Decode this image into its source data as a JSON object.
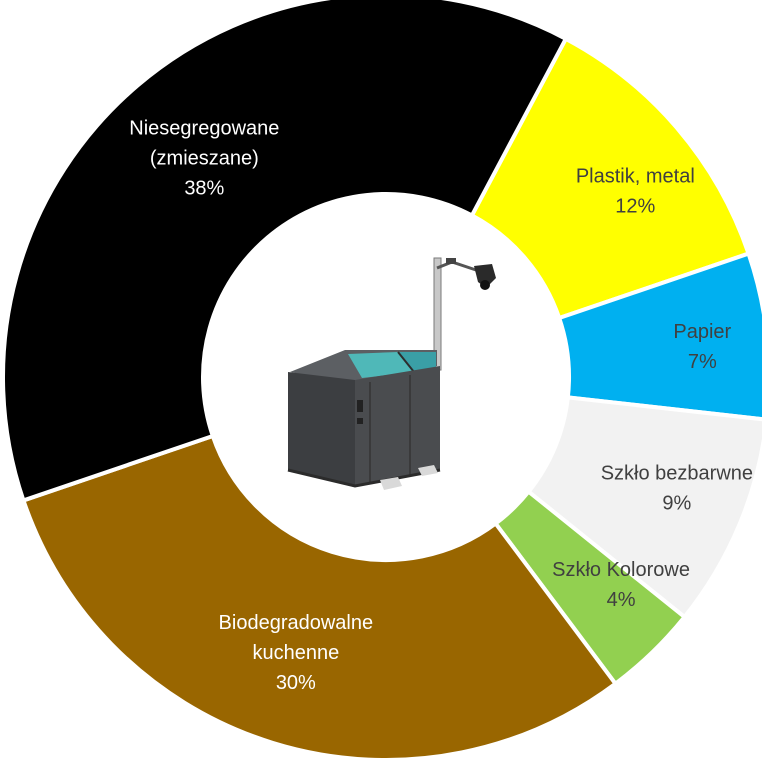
{
  "chart_data": {
    "type": "pie",
    "variant": "donut",
    "title": "",
    "start_angle_deg": 28,
    "series": [
      {
        "name": "",
        "slices": [
          {
            "label_lines": [
              "Plastik, metal"
            ],
            "pct_text": "12%",
            "value": 12,
            "color": "#FFFF00",
            "text_color": "#404040"
          },
          {
            "label_lines": [
              "Papier"
            ],
            "pct_text": "7%",
            "value": 7,
            "color": "#00B0F0",
            "text_color": "#404040"
          },
          {
            "label_lines": [
              "Szkło bezbarwne"
            ],
            "pct_text": "9%",
            "value": 9,
            "color": "#F2F2F2",
            "text_color": "#404040"
          },
          {
            "label_lines": [
              "Szkło Kolorowe"
            ],
            "pct_text": "4%",
            "value": 4,
            "color": "#92D050",
            "text_color": "#404040"
          },
          {
            "label_lines": [
              "Biodegradowalne",
              "kuchenne"
            ],
            "pct_text": "30%",
            "value": 30,
            "color": "#996600",
            "text_color": "#FFFFFF"
          },
          {
            "label_lines": [
              "Niesegregowane",
              "(zmieszane)"
            ],
            "pct_text": "38%",
            "value": 38,
            "color": "#000000",
            "text_color": "#FFFFFF"
          }
        ]
      }
    ],
    "center_icon": "waste-sorting-station-icon"
  }
}
